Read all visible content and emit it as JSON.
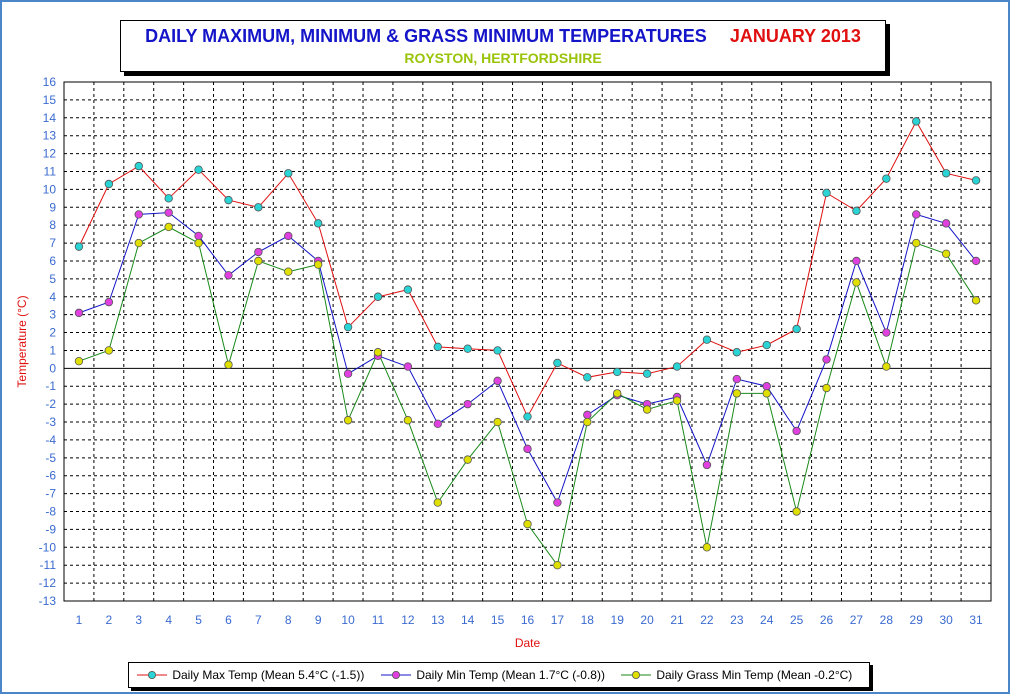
{
  "title": {
    "main": "DAILY MAXIMUM, MINIMUM & GRASS MINIMUM TEMPERATURES",
    "month": "JANUARY 2013",
    "subtitle": "ROYSTON, HERTFORDSHIRE"
  },
  "colors": {
    "title_main": "#1414c8",
    "title_month": "#e01010",
    "subtitle": "#9ac40a",
    "axis_text": "#3a6ad0",
    "axis_label": "#e01010",
    "frame": "#4a86c8"
  },
  "chart_data": {
    "type": "line",
    "xlabel": "Date",
    "ylabel": "Temperature (°C)",
    "x": [
      1,
      2,
      3,
      4,
      5,
      6,
      7,
      8,
      9,
      10,
      11,
      12,
      13,
      14,
      15,
      16,
      17,
      18,
      19,
      20,
      21,
      22,
      23,
      24,
      25,
      26,
      27,
      28,
      29,
      30,
      31
    ],
    "xlim": [
      0.5,
      31.5
    ],
    "ylim": [
      -13,
      16
    ],
    "yticks": [
      -13,
      -12,
      -11,
      -10,
      -9,
      -8,
      -7,
      -6,
      -5,
      -4,
      -3,
      -2,
      -1,
      0,
      1,
      2,
      3,
      4,
      5,
      6,
      7,
      8,
      9,
      10,
      11,
      12,
      13,
      14,
      15,
      16
    ],
    "grid": true,
    "legend_position": "bottom",
    "series": [
      {
        "name": "Daily Max Temp (Mean 5.4°C (-1.5))",
        "line_color": "#e01010",
        "marker_color": "#2ad4d4",
        "values": [
          6.8,
          10.3,
          11.3,
          9.5,
          11.1,
          9.4,
          9.0,
          10.9,
          8.1,
          2.3,
          4.0,
          4.4,
          1.2,
          1.1,
          1.0,
          -2.7,
          0.3,
          -0.5,
          -0.2,
          -0.3,
          0.1,
          1.6,
          0.9,
          1.3,
          2.2,
          9.8,
          8.8,
          10.6,
          13.8,
          10.9,
          10.5
        ]
      },
      {
        "name": "Daily Min Temp (Mean 1.7°C (-0.8))",
        "line_color": "#1414c8",
        "marker_color": "#e040e0",
        "values": [
          3.1,
          3.7,
          8.6,
          8.7,
          7.4,
          5.2,
          6.5,
          7.4,
          6.0,
          -0.3,
          0.7,
          0.1,
          -3.1,
          -2.0,
          -0.7,
          -4.5,
          -7.5,
          -2.6,
          -1.5,
          -2.0,
          -1.6,
          -5.4,
          -0.6,
          -1.0,
          -3.5,
          0.5,
          6.0,
          2.0,
          8.6,
          8.1,
          6.0
        ]
      },
      {
        "name": "Daily Grass Min Temp (Mean -0.2°C)",
        "line_color": "#1a8a1a",
        "marker_color": "#e0e000",
        "values": [
          0.4,
          1.0,
          7.0,
          7.9,
          7.0,
          0.2,
          6.0,
          5.4,
          5.8,
          -2.9,
          0.9,
          -2.9,
          -7.5,
          -5.1,
          -3.0,
          -8.7,
          -11.0,
          -3.0,
          -1.4,
          -2.3,
          -1.8,
          -10.0,
          -1.4,
          -1.4,
          -8.0,
          -1.1,
          4.8,
          0.1,
          7.0,
          6.4,
          3.8
        ]
      }
    ]
  }
}
